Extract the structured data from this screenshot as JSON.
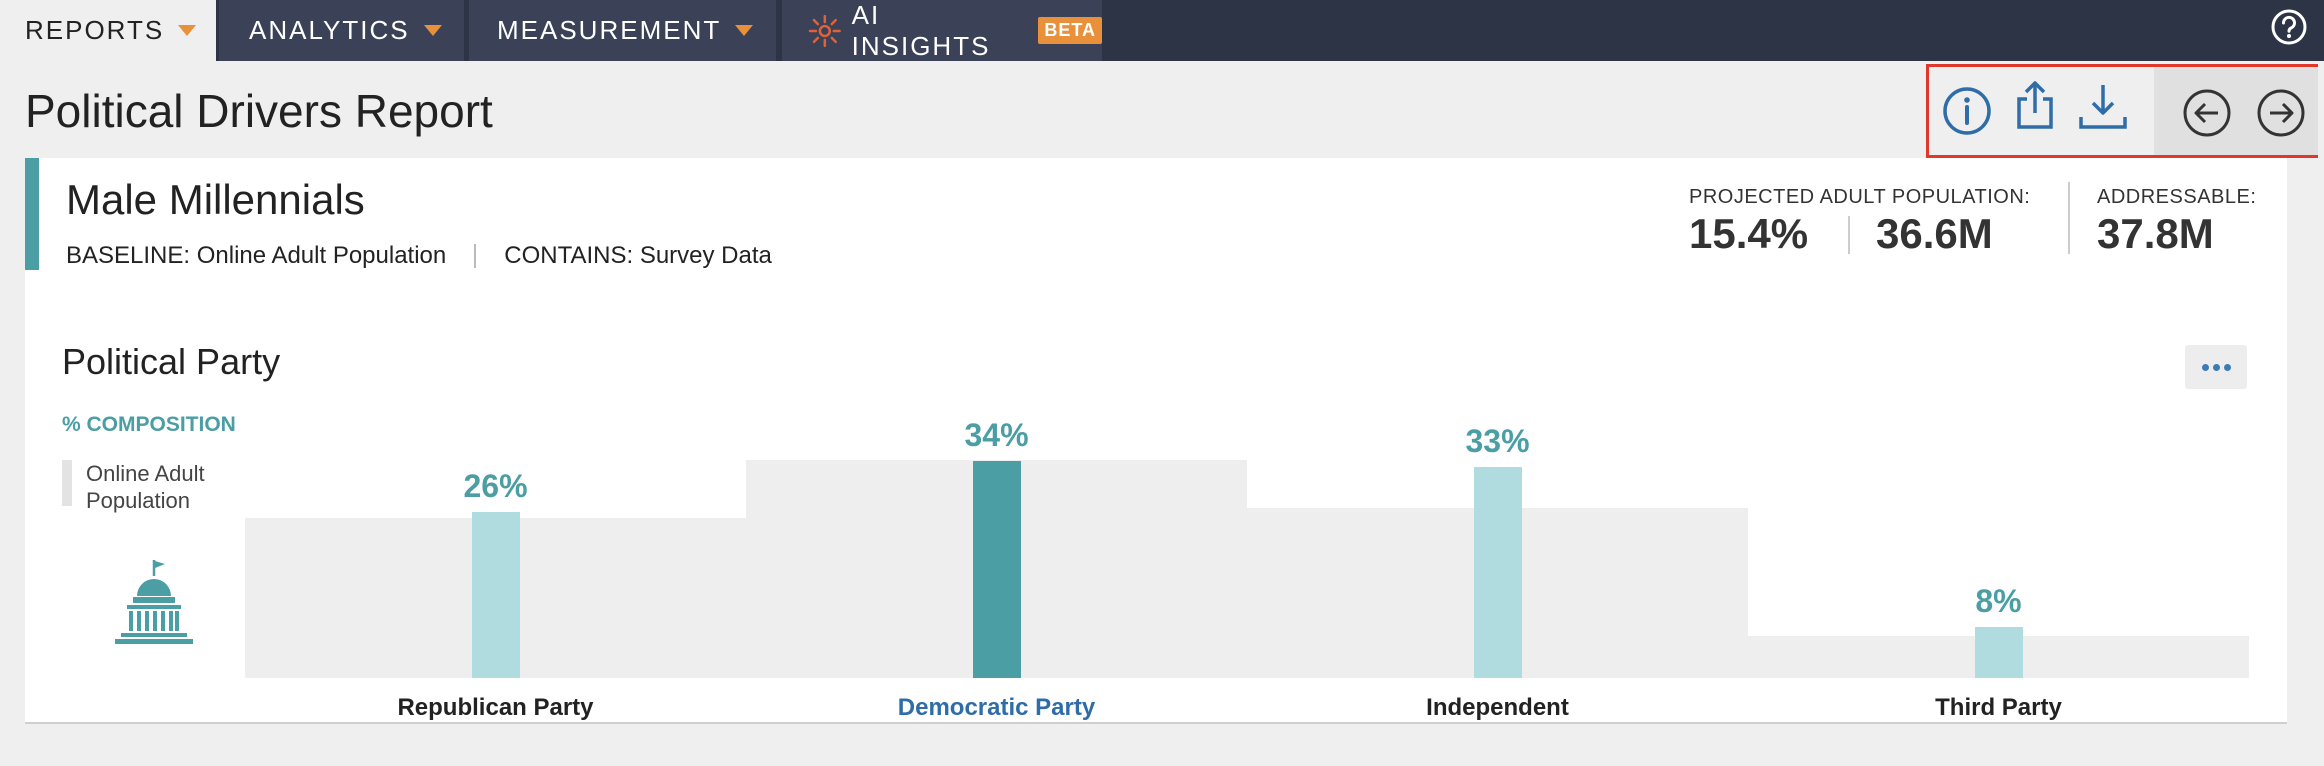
{
  "nav": {
    "tabs": [
      {
        "label": "REPORTS",
        "active": true
      },
      {
        "label": "ANALYTICS",
        "active": false
      },
      {
        "label": "MEASUREMENT",
        "active": false
      },
      {
        "label": "AI INSIGHTS",
        "badge": "BETA",
        "icon": "ai-sparkle-icon",
        "active": false
      }
    ],
    "help_icon": "help-icon"
  },
  "header": {
    "title": "Political Drivers Report",
    "toolbar": {
      "icons": [
        "info-icon",
        "share-icon",
        "download-icon",
        "arrow-left-icon",
        "arrow-right-icon"
      ]
    }
  },
  "segment": {
    "name": "Male Millennials",
    "baseline": "BASELINE: Online Adult Population",
    "contains": "CONTAINS: Survey Data",
    "projected_label": "PROJECTED ADULT POPULATION:",
    "projected_pct": "15.4%",
    "projected_count": "36.6M",
    "addressable_label": "ADDRESSABLE:",
    "addressable_value": "37.8M"
  },
  "chart_section": {
    "title": "Political Party",
    "metric_label": "% COMPOSITION",
    "legend_label": "Online Adult Population",
    "more_icon": "more-horizontal-icon",
    "category_icon": "capitol-building-icon"
  },
  "chart_data": {
    "type": "bar",
    "categories": [
      "Republican Party",
      "Democratic Party",
      "Independent",
      "Third Party"
    ],
    "series": [
      {
        "values": [
          26,
          34,
          33,
          8
        ],
        "labels": [
          "26%",
          "34%",
          "33%",
          "8%"
        ]
      }
    ],
    "highlighted_category": "Democratic Party",
    "colors": {
      "bar": "#b1dcdf",
      "bar_highlight": "#4a9ea4",
      "baseline": "#eeeeee",
      "accent": "#4a9ea4"
    }
  }
}
